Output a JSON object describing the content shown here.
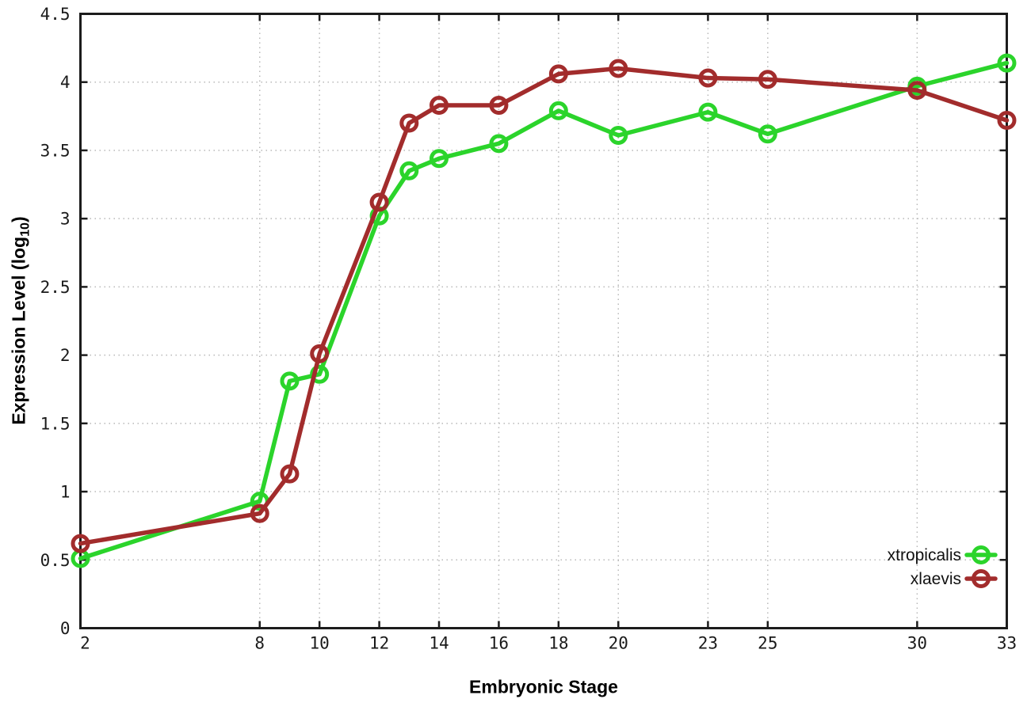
{
  "page": {
    "background": "#ffffff",
    "xlabel": "Embryonic Stage",
    "ylabel_prefix": "Expression Level (log",
    "ylabel_subscript": "10",
    "ylabel_suffix": ")"
  },
  "colors": {
    "border": "#1c1c1c",
    "grid": "#b8b8b8",
    "tick_text": "#1a1a1a",
    "xtropicalis": "#2bd42b",
    "xlaevis": "#a22c2c"
  },
  "chart_data": {
    "type": "line",
    "title": "",
    "xlabel": "Embryonic Stage",
    "ylabel": "Expression Level (log10)",
    "xlim": [
      2,
      33
    ],
    "ylim": [
      0,
      4.5
    ],
    "grid": true,
    "grid_style": "dotted",
    "marker": "open-circle",
    "legend_position": "bottom-right",
    "xticks": [
      2,
      8,
      10,
      12,
      14,
      16,
      18,
      20,
      23,
      25,
      30,
      33
    ],
    "yticks": [
      0,
      0.5,
      1,
      1.5,
      2,
      2.5,
      3,
      3.5,
      4,
      4.5
    ],
    "x": [
      2,
      8,
      9,
      10,
      12,
      13,
      14,
      16,
      18,
      20,
      23,
      25,
      30,
      33
    ],
    "series": [
      {
        "name": "xtropicalis",
        "color": "#2bd42b",
        "values": [
          0.51,
          0.93,
          1.81,
          1.86,
          3.02,
          3.35,
          3.44,
          3.55,
          3.79,
          3.61,
          3.78,
          3.62,
          3.97,
          4.14
        ]
      },
      {
        "name": "xlaevis",
        "color": "#a22c2c",
        "values": [
          0.62,
          0.84,
          1.13,
          2.01,
          3.12,
          3.7,
          3.83,
          3.83,
          4.06,
          4.1,
          4.03,
          4.02,
          3.94,
          3.72
        ]
      }
    ]
  }
}
